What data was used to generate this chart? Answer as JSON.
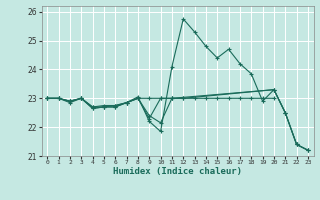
{
  "xlabel": "Humidex (Indice chaleur)",
  "xlim": [
    -0.5,
    23.5
  ],
  "ylim": [
    21,
    26.2
  ],
  "yticks": [
    21,
    22,
    23,
    24,
    25,
    26
  ],
  "xticks": [
    0,
    1,
    2,
    3,
    4,
    5,
    6,
    7,
    8,
    9,
    10,
    11,
    12,
    13,
    14,
    15,
    16,
    17,
    18,
    19,
    20,
    21,
    22,
    23
  ],
  "background_color": "#c5e8e2",
  "grid_color": "#b0d8d0",
  "line_color": "#1a6b5a",
  "lines": [
    {
      "x": [
        0,
        1,
        2,
        3,
        4,
        5,
        6,
        7,
        8,
        9,
        10,
        11,
        12,
        13,
        14,
        15,
        16,
        17,
        18,
        19,
        20,
        21,
        22,
        23
      ],
      "y": [
        23.0,
        23.0,
        22.9,
        23.0,
        22.7,
        22.7,
        22.75,
        22.85,
        23.05,
        22.2,
        21.85,
        24.1,
        25.75,
        25.3,
        24.8,
        24.4,
        24.7,
        24.2,
        23.85,
        22.9,
        23.3,
        22.5,
        21.4,
        21.2
      ]
    },
    {
      "x": [
        0,
        1,
        2,
        3,
        4,
        5,
        6,
        7,
        8,
        9,
        10,
        11,
        12,
        13,
        14,
        15,
        16,
        17,
        18,
        19,
        20
      ],
      "y": [
        23.0,
        23.0,
        22.9,
        23.0,
        22.7,
        22.75,
        22.75,
        22.85,
        23.0,
        23.0,
        23.0,
        23.0,
        23.0,
        23.0,
        23.0,
        23.0,
        23.0,
        23.0,
        23.0,
        23.0,
        23.0
      ]
    },
    {
      "x": [
        0,
        1,
        2,
        3,
        4,
        5,
        6,
        7,
        8,
        9,
        10,
        11,
        12,
        20,
        21,
        22,
        23
      ],
      "y": [
        23.0,
        23.0,
        22.9,
        23.0,
        22.65,
        22.7,
        22.7,
        22.85,
        23.0,
        22.3,
        23.0,
        23.0,
        23.0,
        23.3,
        22.5,
        21.4,
        21.2
      ]
    },
    {
      "x": [
        0,
        1,
        2,
        3,
        4,
        5,
        6,
        7,
        8,
        9,
        10,
        11,
        20,
        21,
        22,
        23
      ],
      "y": [
        23.0,
        23.0,
        22.85,
        23.0,
        22.65,
        22.7,
        22.7,
        22.85,
        23.0,
        22.4,
        22.15,
        23.0,
        23.3,
        22.5,
        21.4,
        21.2
      ]
    }
  ]
}
